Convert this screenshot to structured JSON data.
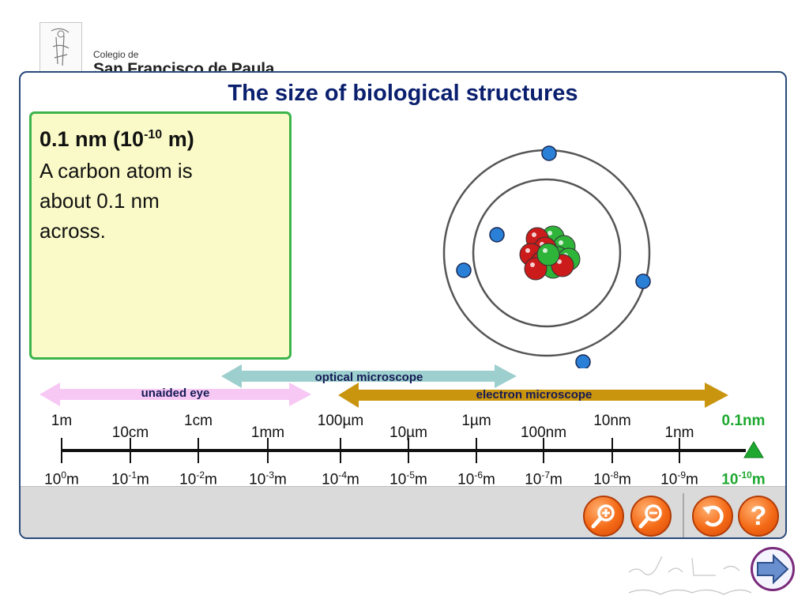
{
  "school": {
    "line1": "Colegio de",
    "line2": "San Francisco de Paula"
  },
  "title": "The size of biological structures",
  "info": {
    "heading_main": "0.1 nm (10",
    "heading_exp": "-10",
    "heading_end": " m)",
    "body": [
      "A carbon atom is",
      "about 0.1 nm",
      "across."
    ]
  },
  "ranges": [
    {
      "name": "unaided eye",
      "color": "#f7c8f4"
    },
    {
      "name": "optical microscope",
      "color": "#9ccfcd"
    },
    {
      "name": "electron microscope",
      "color": "#c9940e"
    }
  ],
  "scale": {
    "top_labels": [
      "1m",
      "10cm",
      "1cm",
      "1mm",
      "100µm",
      "10µm",
      "1µm",
      "100nm",
      "10nm",
      "1nm",
      "0.1nm"
    ],
    "bottom_base": "10",
    "bottom_unit": "m",
    "bottom_exponents": [
      "0",
      "-1",
      "-2",
      "-3",
      "-4",
      "-5",
      "-6",
      "-7",
      "-8",
      "-9",
      "-10"
    ],
    "current_index": 10,
    "current_color": "#1ea830"
  },
  "atom": {
    "protons_color": "#cc1b1b",
    "neutrons_color": "#2fb43a",
    "electron_color": "#2a7fd6"
  },
  "toolbar": {
    "zoom_in": "zoom-in",
    "zoom_out": "zoom-out",
    "reset": "reset",
    "help": "?"
  }
}
